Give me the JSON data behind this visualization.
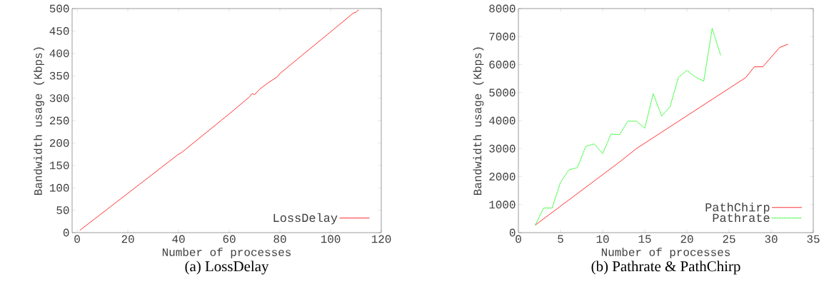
{
  "chart_data": [
    {
      "type": "line",
      "title": "(a) LossDelay",
      "xlabel": "Number of processes",
      "ylabel": "Bandwidth usage (Kbps)",
      "xlim": [
        -2,
        120
      ],
      "ylim": [
        0,
        500
      ],
      "xticks": [
        0,
        20,
        40,
        60,
        80,
        100,
        120
      ],
      "yticks": [
        0,
        50,
        100,
        150,
        200,
        250,
        300,
        350,
        400,
        450,
        500
      ],
      "legend": "bottom right",
      "grid": false,
      "series": [
        {
          "name": "LossDelay",
          "color": "#ff0000",
          "line_style": "solid",
          "x": [
            1,
            40,
            41,
            43,
            60,
            68,
            69,
            70,
            72,
            75,
            79,
            80,
            109,
            110,
            111
          ],
          "values": [
            5,
            175,
            178,
            187,
            265,
            303,
            310,
            308,
            320,
            333,
            348,
            355,
            490,
            492,
            497
          ]
        }
      ]
    },
    {
      "type": "line",
      "title": "(b) Pathrate & PathChirp",
      "xlabel": "Number of processes",
      "ylabel": "Bandwidth usage (Kbps)",
      "xlim": [
        0,
        35
      ],
      "ylim": [
        0,
        8000
      ],
      "xticks": [
        0,
        5,
        10,
        15,
        20,
        25,
        30,
        35
      ],
      "yticks": [
        0,
        1000,
        2000,
        3000,
        4000,
        5000,
        6000,
        7000,
        8000
      ],
      "legend": "bottom right",
      "grid": false,
      "series": [
        {
          "name": "PathChirp",
          "color": "#ff0000",
          "line_style": "solid",
          "x": [
            2,
            12,
            14,
            27,
            28,
            29,
            31,
            32
          ],
          "values": [
            270,
            2520,
            3000,
            5540,
            5920,
            5920,
            6610,
            6730
          ]
        },
        {
          "name": "Pathrate",
          "color": "#00ff00",
          "line_style": "dashed",
          "x": [
            2,
            3,
            4,
            5,
            6,
            7,
            8,
            9,
            10,
            11,
            12,
            13,
            14,
            15,
            16,
            17,
            18,
            19,
            20,
            21,
            22,
            23,
            24
          ],
          "values": [
            270,
            880,
            880,
            1800,
            2240,
            2320,
            3080,
            3170,
            2820,
            3520,
            3500,
            3980,
            3980,
            3730,
            4960,
            4160,
            4500,
            5550,
            5790,
            5560,
            5410,
            7290,
            6340
          ]
        }
      ]
    }
  ]
}
